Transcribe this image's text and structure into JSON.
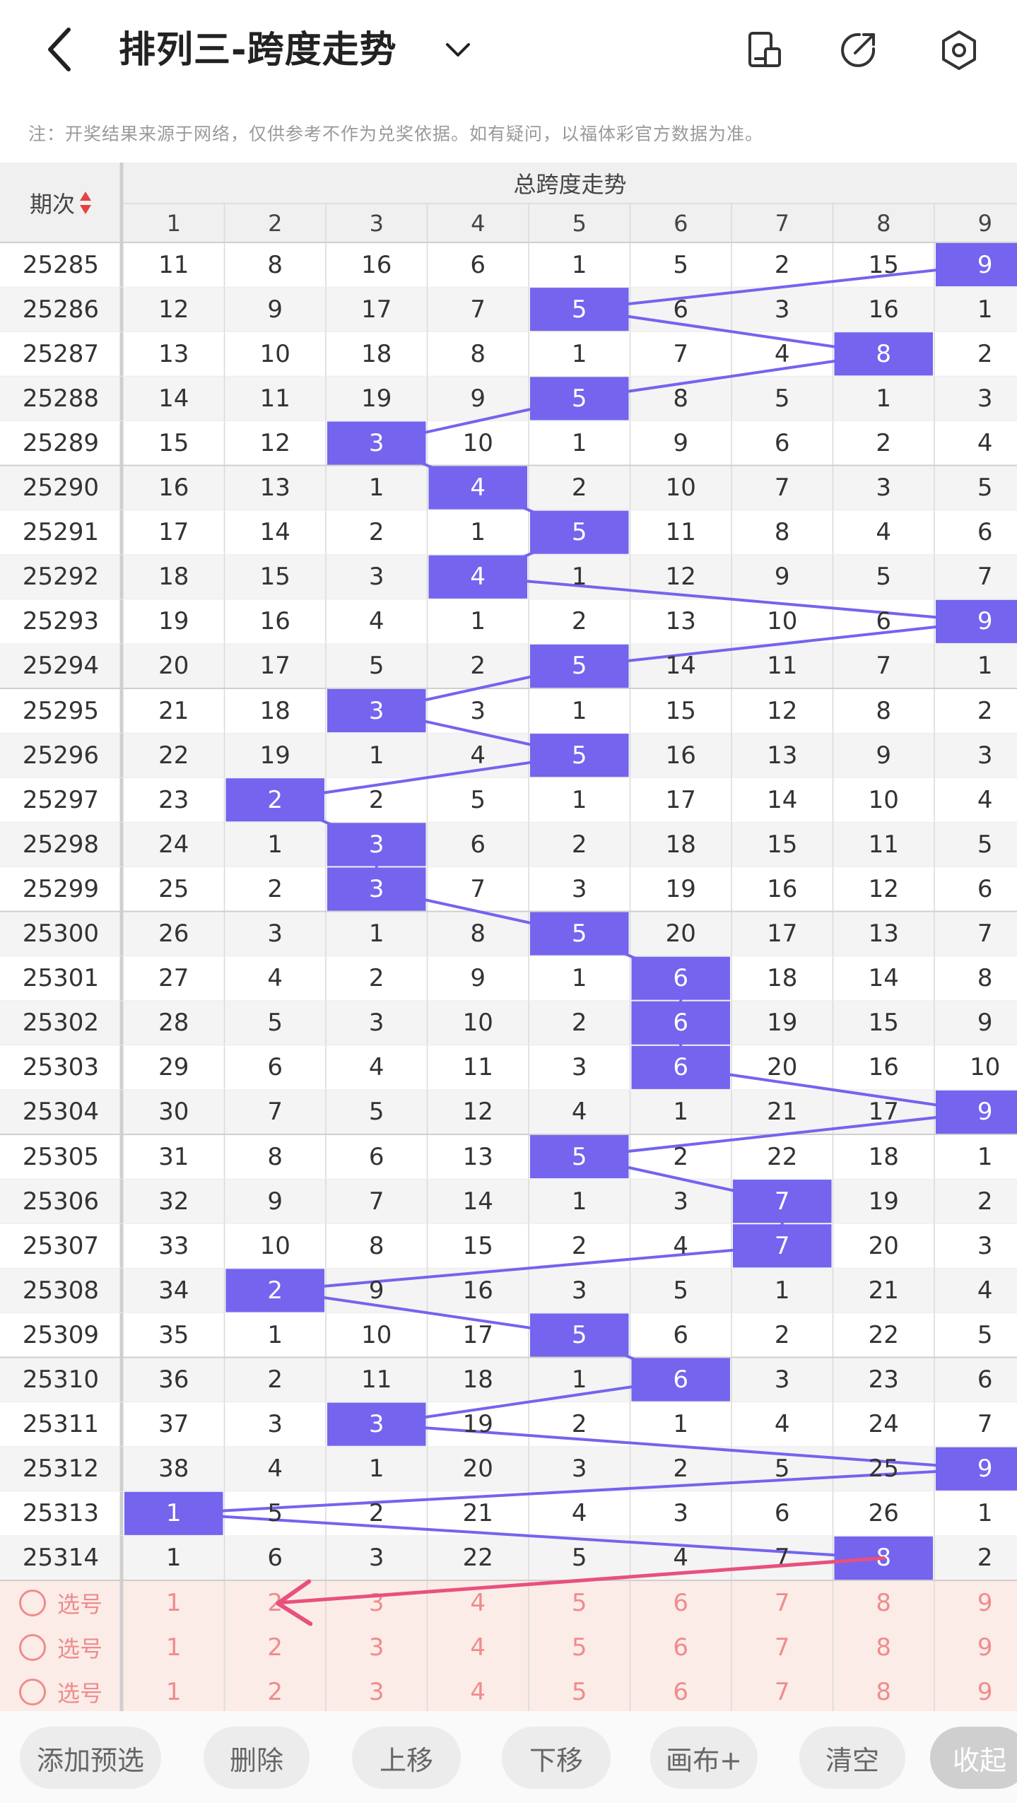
{
  "header": {
    "title": "排列三-跨度走势"
  },
  "notice": "注：开奖结果来源于网络，仅供参考不作为兑奖依据。如有疑问，以福体彩官方数据为准。",
  "table": {
    "period_header": "期次",
    "group_header": "总跨度走势",
    "columns": [
      "1",
      "2",
      "3",
      "4",
      "5",
      "6",
      "7",
      "8",
      "9"
    ],
    "rows": [
      {
        "period": "25285",
        "values": [
          "11",
          "8",
          "16",
          "6",
          "1",
          "5",
          "2",
          "15",
          "9"
        ],
        "hit": 9
      },
      {
        "period": "25286",
        "values": [
          "12",
          "9",
          "17",
          "7",
          "5",
          "6",
          "3",
          "16",
          "1"
        ],
        "hit": 5
      },
      {
        "period": "25287",
        "values": [
          "13",
          "10",
          "18",
          "8",
          "1",
          "7",
          "4",
          "8",
          "2"
        ],
        "hit": 8
      },
      {
        "period": "25288",
        "values": [
          "14",
          "11",
          "19",
          "9",
          "5",
          "8",
          "5",
          "1",
          "3"
        ],
        "hit": 5
      },
      {
        "period": "25289",
        "values": [
          "15",
          "12",
          "3",
          "10",
          "1",
          "9",
          "6",
          "2",
          "4"
        ],
        "hit": 3
      },
      {
        "period": "25290",
        "values": [
          "16",
          "13",
          "1",
          "4",
          "2",
          "10",
          "7",
          "3",
          "5"
        ],
        "hit": 4
      },
      {
        "period": "25291",
        "values": [
          "17",
          "14",
          "2",
          "1",
          "5",
          "11",
          "8",
          "4",
          "6"
        ],
        "hit": 5
      },
      {
        "period": "25292",
        "values": [
          "18",
          "15",
          "3",
          "4",
          "1",
          "12",
          "9",
          "5",
          "7"
        ],
        "hit": 4
      },
      {
        "period": "25293",
        "values": [
          "19",
          "16",
          "4",
          "1",
          "2",
          "13",
          "10",
          "6",
          "9"
        ],
        "hit": 9
      },
      {
        "period": "25294",
        "values": [
          "20",
          "17",
          "5",
          "2",
          "5",
          "14",
          "11",
          "7",
          "1"
        ],
        "hit": 5
      },
      {
        "period": "25295",
        "values": [
          "21",
          "18",
          "3",
          "3",
          "1",
          "15",
          "12",
          "8",
          "2"
        ],
        "hit": 3
      },
      {
        "period": "25296",
        "values": [
          "22",
          "19",
          "1",
          "4",
          "5",
          "16",
          "13",
          "9",
          "3"
        ],
        "hit": 5
      },
      {
        "period": "25297",
        "values": [
          "23",
          "2",
          "2",
          "5",
          "1",
          "17",
          "14",
          "10",
          "4"
        ],
        "hit": 2
      },
      {
        "period": "25298",
        "values": [
          "24",
          "1",
          "3",
          "6",
          "2",
          "18",
          "15",
          "11",
          "5"
        ],
        "hit": 3
      },
      {
        "period": "25299",
        "values": [
          "25",
          "2",
          "3",
          "7",
          "3",
          "19",
          "16",
          "12",
          "6"
        ],
        "hit": 3
      },
      {
        "period": "25300",
        "values": [
          "26",
          "3",
          "1",
          "8",
          "5",
          "20",
          "17",
          "13",
          "7"
        ],
        "hit": 5
      },
      {
        "period": "25301",
        "values": [
          "27",
          "4",
          "2",
          "9",
          "1",
          "6",
          "18",
          "14",
          "8"
        ],
        "hit": 6
      },
      {
        "period": "25302",
        "values": [
          "28",
          "5",
          "3",
          "10",
          "2",
          "6",
          "19",
          "15",
          "9"
        ],
        "hit": 6
      },
      {
        "period": "25303",
        "values": [
          "29",
          "6",
          "4",
          "11",
          "3",
          "6",
          "20",
          "16",
          "10"
        ],
        "hit": 6
      },
      {
        "period": "25304",
        "values": [
          "30",
          "7",
          "5",
          "12",
          "4",
          "1",
          "21",
          "17",
          "9"
        ],
        "hit": 9
      },
      {
        "period": "25305",
        "values": [
          "31",
          "8",
          "6",
          "13",
          "5",
          "2",
          "22",
          "18",
          "1"
        ],
        "hit": 5
      },
      {
        "period": "25306",
        "values": [
          "32",
          "9",
          "7",
          "14",
          "1",
          "3",
          "7",
          "19",
          "2"
        ],
        "hit": 7
      },
      {
        "period": "25307",
        "values": [
          "33",
          "10",
          "8",
          "15",
          "2",
          "4",
          "7",
          "20",
          "3"
        ],
        "hit": 7
      },
      {
        "period": "25308",
        "values": [
          "34",
          "2",
          "9",
          "16",
          "3",
          "5",
          "1",
          "21",
          "4"
        ],
        "hit": 2
      },
      {
        "period": "25309",
        "values": [
          "35",
          "1",
          "10",
          "17",
          "5",
          "6",
          "2",
          "22",
          "5"
        ],
        "hit": 5
      },
      {
        "period": "25310",
        "values": [
          "36",
          "2",
          "11",
          "18",
          "1",
          "6",
          "3",
          "23",
          "6"
        ],
        "hit": 6
      },
      {
        "period": "25311",
        "values": [
          "37",
          "3",
          "3",
          "19",
          "2",
          "1",
          "4",
          "24",
          "7"
        ],
        "hit": 3
      },
      {
        "period": "25312",
        "values": [
          "38",
          "4",
          "1",
          "20",
          "3",
          "2",
          "5",
          "25",
          "9"
        ],
        "hit": 9
      },
      {
        "period": "25313",
        "values": [
          "1",
          "5",
          "2",
          "21",
          "4",
          "3",
          "6",
          "26",
          "1"
        ],
        "hit": 1
      },
      {
        "period": "25314",
        "values": [
          "1",
          "6",
          "3",
          "22",
          "5",
          "4",
          "7",
          "8",
          "2"
        ],
        "hit": 8
      }
    ],
    "select_rows": [
      {
        "label": "选号",
        "values": [
          "1",
          "2",
          "3",
          "4",
          "5",
          "6",
          "7",
          "8",
          "9"
        ]
      },
      {
        "label": "选号",
        "values": [
          "1",
          "2",
          "3",
          "4",
          "5",
          "6",
          "7",
          "8",
          "9"
        ]
      },
      {
        "label": "选号",
        "values": [
          "1",
          "2",
          "3",
          "4",
          "5",
          "6",
          "7",
          "8",
          "9"
        ]
      }
    ]
  },
  "footer": {
    "buttons": [
      "添加预选",
      "删除",
      "上移",
      "下移",
      "画布+",
      "清空",
      "收起"
    ]
  },
  "colors": {
    "hit": "#7464ee",
    "trend_line": "#7464ee",
    "annotation_arrow": "#e8507e",
    "select_bg": "#fbece8",
    "select_text": "#ef8c8c",
    "header_bg": "#f0f0f0"
  },
  "icons": {
    "back": "chevron-left-icon",
    "dropdown": "chevron-down-icon",
    "layout": "phone-layout-icon",
    "share": "share-icon",
    "settings": "settings-icon"
  }
}
